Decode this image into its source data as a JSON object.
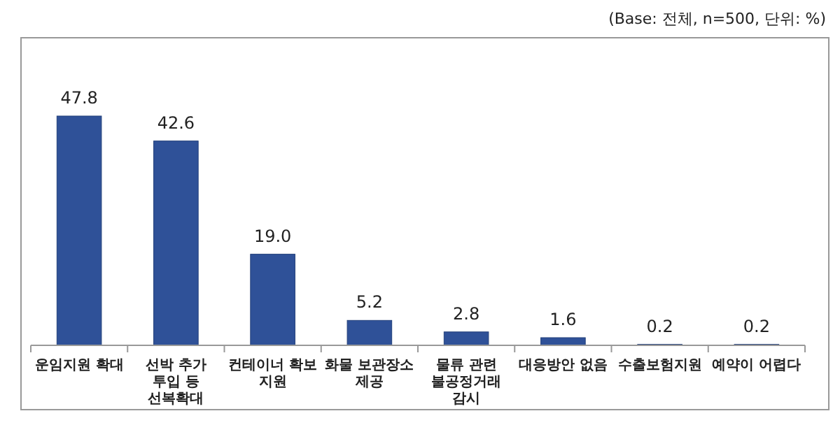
{
  "chart_data": {
    "type": "bar",
    "categories": [
      "운임지원 확대",
      "선박 추가 투입 등 선복확대",
      "컨테이너 확보 지원",
      "화물 보관장소 제공",
      "물류 관련 불공정거래 감시",
      "대응방안 없음",
      "수출보험지원",
      "예약이 어렵다"
    ],
    "values": [
      47.8,
      42.6,
      19.0,
      5.2,
      2.8,
      1.6,
      0.2,
      0.2
    ],
    "value_labels": [
      "47.8",
      "42.6",
      "19.0",
      "5.2",
      "2.8",
      "1.6",
      "0.2",
      "0.2"
    ],
    "color": "#2f5198",
    "annotations": [
      "(Base: 전체, n=500, 단위: %)"
    ]
  }
}
